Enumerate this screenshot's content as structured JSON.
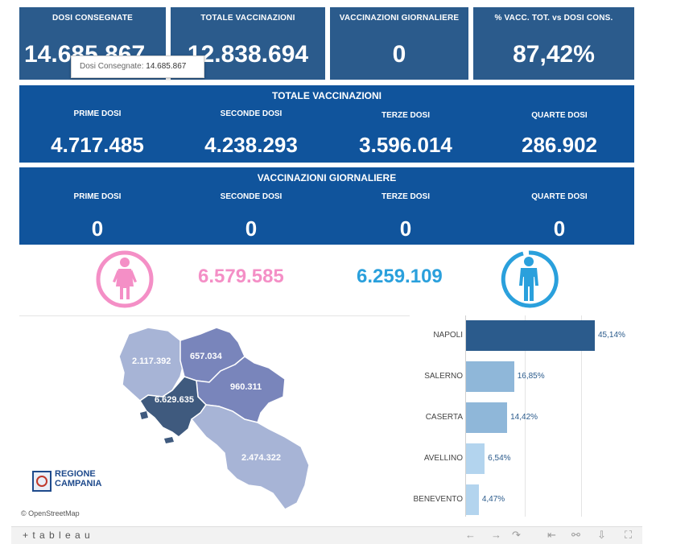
{
  "top_cards": [
    {
      "title": "DOSI CONSEGNATE",
      "value": "14.685.867"
    },
    {
      "title": "TOTALE VACCINAZIONI",
      "value": "12.838.694"
    },
    {
      "title": "VACCINAZIONI GIORNALIERE",
      "value": "0"
    },
    {
      "title": "% VACC. TOT. vs DOSI CONS.",
      "value": "87,42%"
    }
  ],
  "tooltip": {
    "label": "Dosi Consegnate:",
    "value": "14.685.867"
  },
  "totale": {
    "title": "TOTALE VACCINAZIONI",
    "cols": [
      {
        "label": "PRIME DOSI",
        "value": "4.717.485"
      },
      {
        "label": "SECONDE DOSI",
        "value": "4.238.293"
      },
      {
        "label": "TERZE DOSI",
        "value": "3.596.014"
      },
      {
        "label": "QUARTE DOSI",
        "value": "286.902"
      }
    ]
  },
  "giornaliere": {
    "title": "VACCINAZIONI GIORNALIERE",
    "cols": [
      {
        "label": "PRIME DOSI",
        "value": "0"
      },
      {
        "label": "SECONDE DOSI",
        "value": "0"
      },
      {
        "label": "TERZE DOSI",
        "value": "0"
      },
      {
        "label": "QUARTE DOSI",
        "value": "0"
      }
    ]
  },
  "gender": {
    "female_value": "6.579.585",
    "male_value": "6.259.109",
    "female_color": "#f48fc6",
    "male_color": "#2aa0dc",
    "female_icon": "female-icon",
    "male_icon": "male-icon"
  },
  "map": {
    "labels": {
      "caserta": "2.117.392",
      "benevento": "657.034",
      "avellino": "960.311",
      "napoli": "6.629.635",
      "salerno": "2.474.322"
    },
    "logo_line1": "REGIONE",
    "logo_line2": "CAMPANIA",
    "attribution": "© OpenStreetMap"
  },
  "chart_data": {
    "type": "bar",
    "orientation": "horizontal",
    "categories": [
      "NAPOLI",
      "SALERNO",
      "CASERTA",
      "AVELLINO",
      "BENEVENTO"
    ],
    "values": [
      45.14,
      16.85,
      14.42,
      6.54,
      4.47
    ],
    "value_labels": [
      "45,14%",
      "16,85%",
      "14,42%",
      "6,54%",
      "4,47%"
    ],
    "colors": [
      "#2b5b8c",
      "#8fb7d9",
      "#8fb7d9",
      "#b3d4ee",
      "#b3d4ee"
    ]
  },
  "toolbar": {
    "brand": "+ t a b l e a u",
    "icons": [
      "undo-icon",
      "redo-icon",
      "revert-icon",
      "reset-icon",
      "share-icon",
      "download-icon",
      "fullscreen-icon"
    ]
  }
}
